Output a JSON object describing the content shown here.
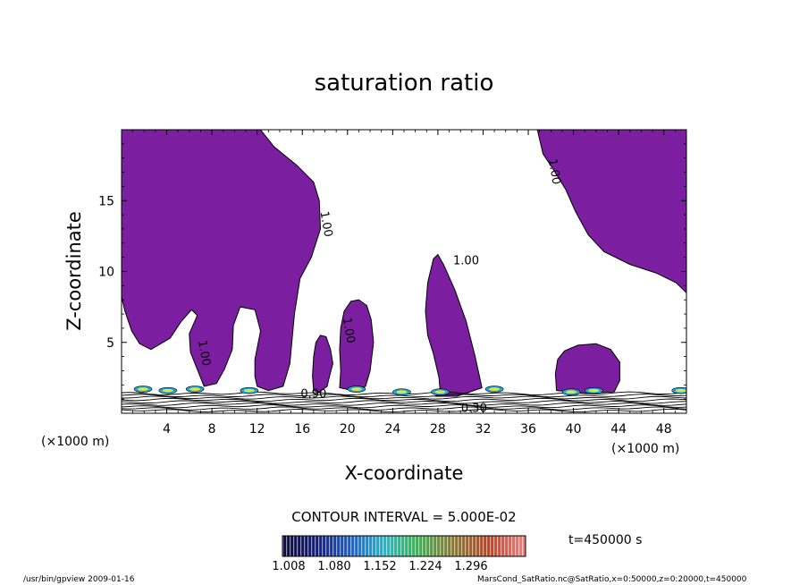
{
  "chart_data": {
    "type": "contour",
    "title": "saturation ratio",
    "xlabel": "X-coordinate",
    "ylabel": "Z-coordinate",
    "x_unit_left": "(×1000 m)",
    "x_unit_right": "(×1000 m)",
    "xlim": [
      0,
      50
    ],
    "ylim": [
      0,
      20
    ],
    "x_ticks": [
      {
        "value": 4,
        "label": "4"
      },
      {
        "value": 8,
        "label": "8"
      },
      {
        "value": 12,
        "label": "12"
      },
      {
        "value": 16,
        "label": "16"
      },
      {
        "value": 20,
        "label": "20"
      },
      {
        "value": 24,
        "label": "24"
      },
      {
        "value": 28,
        "label": "28"
      },
      {
        "value": 32,
        "label": "32"
      },
      {
        "value": 36,
        "label": "36"
      },
      {
        "value": 40,
        "label": "40"
      },
      {
        "value": 44,
        "label": "44"
      },
      {
        "value": 48,
        "label": "48"
      }
    ],
    "y_ticks": [
      {
        "value": 5,
        "label": "5"
      },
      {
        "value": 10,
        "label": "10"
      },
      {
        "value": 15,
        "label": "15"
      }
    ],
    "fill_color": "#7b1fa0",
    "contour_labels": [
      {
        "x": 17.8,
        "y": 13.3,
        "text": "1.00"
      },
      {
        "x": 7.0,
        "y": 4.2,
        "text": "1.00"
      },
      {
        "x": 19.8,
        "y": 5.8,
        "text": "1.00"
      },
      {
        "x": 30.5,
        "y": 10.5,
        "text": "1.00"
      },
      {
        "x": 38.0,
        "y": 17.0,
        "text": "1.00"
      },
      {
        "x": 17.0,
        "y": 1.1,
        "text": "0.90"
      },
      {
        "x": 31.2,
        "y": 0.1,
        "text": "0.30"
      }
    ],
    "regions": [
      {
        "name": "region-left",
        "points": [
          [
            0,
            20
          ],
          [
            12.3,
            20
          ],
          [
            13.5,
            18.8
          ],
          [
            15.5,
            17.5
          ],
          [
            17,
            16.3
          ],
          [
            17.5,
            15
          ],
          [
            17.6,
            13
          ],
          [
            16.8,
            11
          ],
          [
            15.8,
            9.5
          ],
          [
            15.3,
            7
          ],
          [
            14.9,
            3.5
          ],
          [
            14.3,
            1.9
          ],
          [
            13,
            1.6
          ],
          [
            12,
            1.9
          ],
          [
            11.8,
            2.6
          ],
          [
            11.8,
            3.8
          ],
          [
            12.3,
            5.8
          ],
          [
            11.8,
            7.3
          ],
          [
            10.5,
            7.5
          ],
          [
            9.9,
            6.2
          ],
          [
            9.8,
            4.5
          ],
          [
            9.1,
            3.1
          ],
          [
            8.4,
            2.1
          ],
          [
            7.3,
            1.9
          ],
          [
            6.1,
            4.3
          ],
          [
            6.0,
            5.6
          ],
          [
            6.7,
            6.9
          ],
          [
            6.2,
            7.3
          ],
          [
            5.3,
            6.5
          ],
          [
            4.3,
            5.3
          ],
          [
            2.6,
            4.5
          ],
          [
            1.6,
            4.9
          ],
          [
            0.9,
            5.8
          ],
          [
            0.3,
            7.2
          ],
          [
            0,
            8.2
          ]
        ]
      },
      {
        "name": "region-right",
        "points": [
          [
            36.8,
            20
          ],
          [
            50,
            20
          ],
          [
            50,
            8.5
          ],
          [
            49.1,
            9.2
          ],
          [
            47.3,
            9.9
          ],
          [
            45,
            10.5
          ],
          [
            42.7,
            11.4
          ],
          [
            41.3,
            12.6
          ],
          [
            40.2,
            14.2
          ],
          [
            39.3,
            15.8
          ],
          [
            38.3,
            17.1
          ],
          [
            37.3,
            18.3
          ]
        ]
      },
      {
        "name": "region-center-small",
        "points": [
          [
            17.0,
            1.6
          ],
          [
            16.9,
            2.6
          ],
          [
            17.0,
            4.0
          ],
          [
            17.2,
            5.0
          ],
          [
            17.6,
            5.5
          ],
          [
            18.1,
            5.4
          ],
          [
            18.5,
            4.5
          ],
          [
            18.7,
            3.5
          ],
          [
            18.4,
            2.6
          ],
          [
            18.2,
            1.9
          ],
          [
            17.5,
            1.5
          ]
        ]
      },
      {
        "name": "region-center",
        "points": [
          [
            19.3,
            1.8
          ],
          [
            19.4,
            3.0
          ],
          [
            19.3,
            4.5
          ],
          [
            19.4,
            6.0
          ],
          [
            19.7,
            7.2
          ],
          [
            20.3,
            7.9
          ],
          [
            21.0,
            8.0
          ],
          [
            21.7,
            7.6
          ],
          [
            22.1,
            6.6
          ],
          [
            22.3,
            5.0
          ],
          [
            22.0,
            3.0
          ],
          [
            21.6,
            1.9
          ],
          [
            20.5,
            1.6
          ]
        ]
      },
      {
        "name": "region-mid-right",
        "points": [
          [
            31.9,
            1.8
          ],
          [
            31.3,
            4.0
          ],
          [
            30.5,
            6.5
          ],
          [
            29.5,
            8.7
          ],
          [
            28.5,
            10.5
          ],
          [
            28.0,
            11.2
          ],
          [
            27.6,
            10.9
          ],
          [
            27.1,
            9.2
          ],
          [
            26.9,
            7.2
          ],
          [
            27.1,
            5.5
          ],
          [
            27.6,
            4.2
          ],
          [
            28.1,
            2.5
          ],
          [
            28.2,
            1.6
          ],
          [
            27.8,
            1.2
          ],
          [
            29.7,
            1.2
          ]
        ]
      },
      {
        "name": "region-right-small",
        "points": [
          [
            38.5,
            1.6
          ],
          [
            38.4,
            2.8
          ],
          [
            38.6,
            3.8
          ],
          [
            39.2,
            4.4
          ],
          [
            40.4,
            4.8
          ],
          [
            42.0,
            4.9
          ],
          [
            43.3,
            4.5
          ],
          [
            44.1,
            3.6
          ],
          [
            44.1,
            2.3
          ],
          [
            43.6,
            1.5
          ],
          [
            41.0,
            1.4
          ]
        ]
      }
    ],
    "colorbar": {
      "ticks": [
        "1.008",
        "1.080",
        "1.152",
        "1.224",
        "1.296"
      ],
      "min": 1.008,
      "max": 1.296
    },
    "contour_interval": "CONTOUR INTERVAL = 5.000E-02",
    "time_label": "t=450000  s"
  },
  "footer": {
    "left": "/usr/bin/gpview  2009-01-16",
    "right": "MarsCond_SatRatio.nc@SatRatio,x=0:50000,z=0:20000,t=450000"
  }
}
